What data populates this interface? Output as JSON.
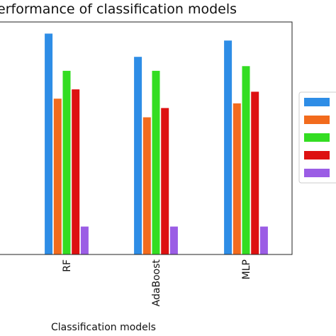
{
  "chart_data": {
    "type": "bar",
    "title": "erformance of classification models",
    "xlabel": "Classification models",
    "categories": [
      "RF",
      "AdaBoost",
      "MLP"
    ],
    "ylim": [
      0,
      1
    ],
    "grid": false,
    "legend_position": "right",
    "series": [
      {
        "color": "#2e8de6",
        "values": [
          0.95,
          0.85,
          0.92
        ]
      },
      {
        "color": "#f26b1d",
        "values": [
          0.67,
          0.59,
          0.65
        ]
      },
      {
        "color": "#33dd22",
        "values": [
          0.79,
          0.79,
          0.81
        ]
      },
      {
        "color": "#dd1111",
        "values": [
          0.71,
          0.63,
          0.7
        ]
      },
      {
        "color": "#9b5de5",
        "values": [
          0.12,
          0.12,
          0.12
        ]
      }
    ]
  }
}
